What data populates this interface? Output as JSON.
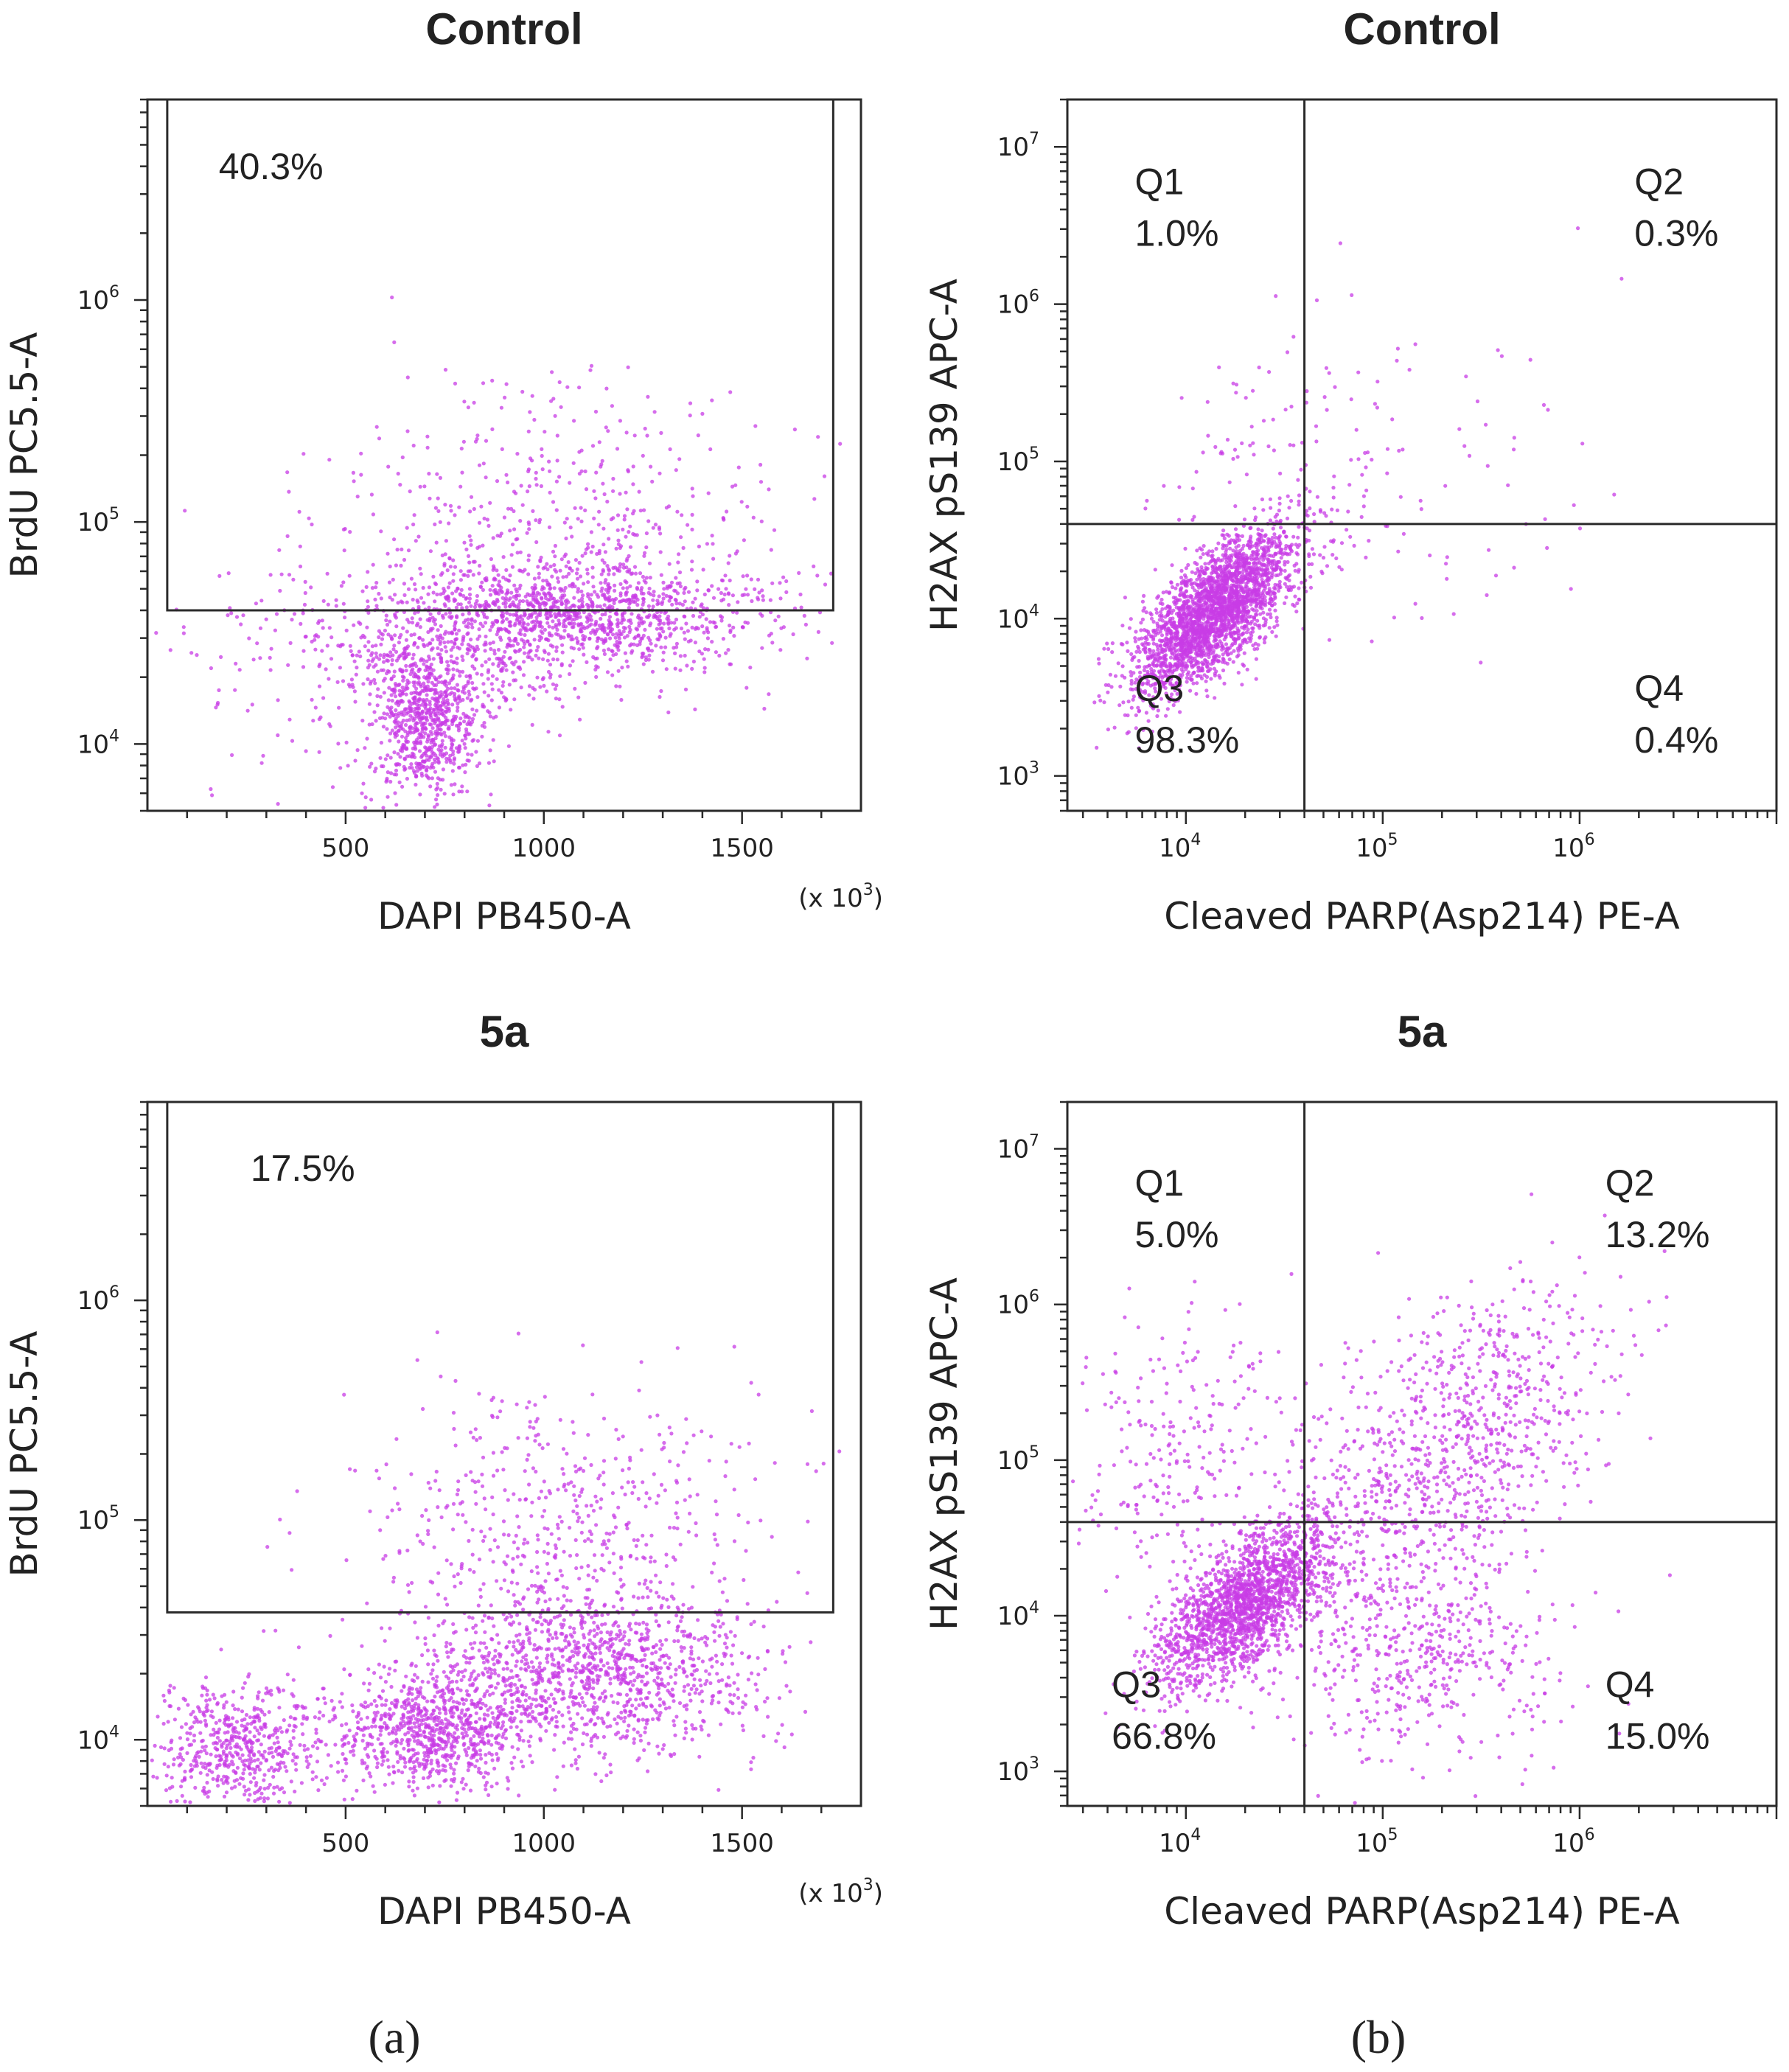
{
  "chart_data": [
    {
      "type": "scatter",
      "id": "a-control",
      "title": "Control",
      "xlabel": "DAPI PB450-A",
      "ylabel": "BrdU PC5.5-A",
      "x_scale": "linear",
      "y_scale": "log",
      "xlim": [
        0,
        1800
      ],
      "ylim": [
        5000,
        8000000
      ],
      "x_ticks": [
        {
          "v": 500,
          "label": "500"
        },
        {
          "v": 1000,
          "label": "1000"
        },
        {
          "v": 1500,
          "label": "1500"
        }
      ],
      "x_multiplier": {
        "base": "(x 10",
        "sup": "3",
        "close": ")"
      },
      "y_ticks": [
        {
          "v": 10000,
          "base": "10",
          "sup": "4"
        },
        {
          "v": 100000,
          "base": "10",
          "sup": "5"
        },
        {
          "v": 1000000,
          "base": "10",
          "sup": "6"
        }
      ],
      "gate": {
        "type": "rect",
        "x": [
          50,
          1730
        ],
        "y": [
          40000,
          8000000
        ],
        "label": "40.3%",
        "label_at": {
          "x": 180,
          "y": 3500000
        }
      },
      "point_color": "#c83ce6",
      "populations": [
        {
          "n": 800,
          "x": [
            700,
            70
          ],
          "y": [
            13000,
            0.17
          ]
        },
        {
          "n": 900,
          "x": [
            1120,
            230
          ],
          "y": [
            40000,
            0.12
          ]
        },
        {
          "n": 650,
          "x": [
            880,
            260
          ],
          "y": [
            30000,
            0.16
          ]
        },
        {
          "n": 420,
          "x": [
            1050,
            280
          ],
          "y": [
            110000,
            0.3
          ]
        },
        {
          "n": 120,
          "x": [
            520,
            240
          ],
          "y": [
            22000,
            0.3
          ]
        }
      ]
    },
    {
      "type": "scatter",
      "id": "b-control",
      "title": "Control",
      "xlabel": "Cleaved PARP(Asp214) PE-A",
      "ylabel": "H2AX pS139 APC-A",
      "x_scale": "log",
      "y_scale": "log",
      "xlim": [
        2500,
        10000000
      ],
      "ylim": [
        600,
        20000000
      ],
      "x_ticks": [
        {
          "v": 10000,
          "base": "10",
          "sup": "4"
        },
        {
          "v": 100000,
          "base": "10",
          "sup": "5"
        },
        {
          "v": 1000000,
          "base": "10",
          "sup": "6"
        }
      ],
      "y_ticks": [
        {
          "v": 1000,
          "base": "10",
          "sup": "3"
        },
        {
          "v": 10000,
          "base": "10",
          "sup": "4"
        },
        {
          "v": 100000,
          "base": "10",
          "sup": "5"
        },
        {
          "v": 1000000,
          "base": "10",
          "sup": "6"
        },
        {
          "v": 10000000,
          "base": "10",
          "sup": "7"
        }
      ],
      "gate": {
        "type": "quadrant",
        "x": 40000,
        "y": 40000
      },
      "quadrants": [
        {
          "name": "Q1",
          "value": "1.0%",
          "at": {
            "x": 5500,
            "y": 5000000
          }
        },
        {
          "name": "Q2",
          "value": "0.3%",
          "at": {
            "x": 1900000,
            "y": 5000000
          }
        },
        {
          "name": "Q3",
          "value": "98.3%",
          "at": {
            "x": 5500,
            "y": 3000
          }
        },
        {
          "name": "Q4",
          "value": "0.4%",
          "at": {
            "x": 1900000,
            "y": 3000
          }
        }
      ],
      "point_color": "#c83ce6",
      "populations": [
        {
          "n": 2600,
          "x": [
            14000,
            0.2
          ],
          "y": [
            11000,
            0.26
          ],
          "corr": 0.7
        },
        {
          "n": 120,
          "x": [
            40000,
            0.4
          ],
          "y": [
            70000,
            0.5
          ]
        },
        {
          "n": 60,
          "x": [
            250000,
            0.55
          ],
          "y": [
            120000,
            0.65
          ]
        }
      ]
    },
    {
      "type": "scatter",
      "id": "a-5a",
      "title": "5a",
      "xlabel": "DAPI PB450-A",
      "ylabel": "BrdU PC5.5-A",
      "x_scale": "linear",
      "y_scale": "log",
      "xlim": [
        0,
        1800
      ],
      "ylim": [
        5000,
        8000000
      ],
      "x_ticks": [
        {
          "v": 500,
          "label": "500"
        },
        {
          "v": 1000,
          "label": "1000"
        },
        {
          "v": 1500,
          "label": "1500"
        }
      ],
      "x_multiplier": {
        "base": "(x 10",
        "sup": "3",
        "close": ")"
      },
      "y_ticks": [
        {
          "v": 10000,
          "base": "10",
          "sup": "4"
        },
        {
          "v": 100000,
          "base": "10",
          "sup": "5"
        },
        {
          "v": 1000000,
          "base": "10",
          "sup": "6"
        }
      ],
      "gate": {
        "type": "rect",
        "x": [
          50,
          1730
        ],
        "y": [
          38000,
          8000000
        ],
        "label": "17.5%",
        "label_at": {
          "x": 260,
          "y": 3500000
        }
      },
      "point_color": "#c83ce6",
      "populations": [
        {
          "n": 600,
          "x": [
            230,
            110
          ],
          "y": [
            9000,
            0.16
          ]
        },
        {
          "n": 800,
          "x": [
            720,
            120
          ],
          "y": [
            11000,
            0.14
          ]
        },
        {
          "n": 1200,
          "x": [
            1120,
            220
          ],
          "y": [
            20000,
            0.18
          ]
        },
        {
          "n": 550,
          "x": [
            1050,
            260
          ],
          "y": [
            90000,
            0.33
          ]
        }
      ]
    },
    {
      "type": "scatter",
      "id": "b-5a",
      "title": "5a",
      "xlabel": "Cleaved PARP(Asp214) PE-A",
      "ylabel": "H2AX pS139 APC-A",
      "x_scale": "log",
      "y_scale": "log",
      "xlim": [
        2500,
        10000000
      ],
      "ylim": [
        600,
        20000000
      ],
      "x_ticks": [
        {
          "v": 10000,
          "base": "10",
          "sup": "4"
        },
        {
          "v": 100000,
          "base": "10",
          "sup": "5"
        },
        {
          "v": 1000000,
          "base": "10",
          "sup": "6"
        }
      ],
      "y_ticks": [
        {
          "v": 1000,
          "base": "10",
          "sup": "3"
        },
        {
          "v": 10000,
          "base": "10",
          "sup": "4"
        },
        {
          "v": 100000,
          "base": "10",
          "sup": "5"
        },
        {
          "v": 1000000,
          "base": "10",
          "sup": "6"
        },
        {
          "v": 10000000,
          "base": "10",
          "sup": "7"
        }
      ],
      "gate": {
        "type": "quadrant",
        "x": 40000,
        "y": 40000
      },
      "quadrants": [
        {
          "name": "Q1",
          "value": "5.0%",
          "at": {
            "x": 5500,
            "y": 5000000
          }
        },
        {
          "name": "Q2",
          "value": "13.2%",
          "at": {
            "x": 1350000,
            "y": 5000000
          }
        },
        {
          "name": "Q3",
          "value": "66.8%",
          "at": {
            "x": 4200,
            "y": 3000
          }
        },
        {
          "name": "Q4",
          "value": "15.0%",
          "at": {
            "x": 1350000,
            "y": 3000
          }
        }
      ],
      "point_color": "#c83ce6",
      "populations": [
        {
          "n": 1900,
          "x": [
            20000,
            0.22
          ],
          "y": [
            12000,
            0.27
          ],
          "corr": 0.65
        },
        {
          "n": 900,
          "x": [
            220000,
            0.38
          ],
          "y": [
            120000,
            0.5
          ],
          "corr": 0.5
        },
        {
          "n": 500,
          "x": [
            150000,
            0.35
          ],
          "y": [
            6000,
            0.35
          ]
        },
        {
          "n": 250,
          "x": [
            10000,
            0.3
          ],
          "y": [
            120000,
            0.45
          ]
        }
      ]
    }
  ],
  "panels": [
    {
      "label": "(a)"
    },
    {
      "label": "(b)"
    }
  ]
}
